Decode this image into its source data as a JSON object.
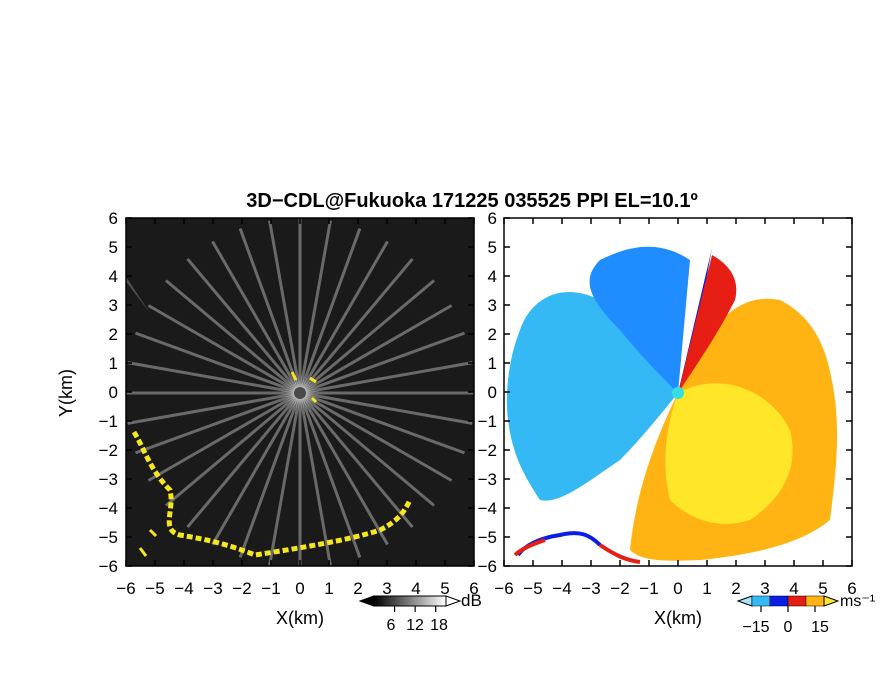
{
  "figure": {
    "title": "3D−CDL@Fukuoka 171225 035525 PPI EL=10.1º"
  },
  "colors": {
    "reflectivity_dark": "#111111",
    "reflectivity_light": "#f2f2f2",
    "strong_echo": "#f5e61e",
    "radar_site_left": "#4a4a4a",
    "radar_site_right": "#33e0e0",
    "velocity_negative": [
      "#0a1ee6",
      "#1f8cff",
      "#35b9f5",
      "#a7e4fb"
    ],
    "velocity_positive": [
      "#e61e14",
      "#ff7814",
      "#ffb414",
      "#ffe628"
    ]
  },
  "chart_data": [
    {
      "type": "heatmap",
      "name": "reflectivity",
      "title": "",
      "xlabel": "X(km)",
      "ylabel": "Y(km)",
      "xlim": [
        -6,
        6
      ],
      "ylim": [
        -6,
        6
      ],
      "x_ticks": [
        "−6",
        "−5",
        "−4",
        "−3",
        "−2",
        "−1",
        "0",
        "1",
        "2",
        "3",
        "4",
        "5",
        "6"
      ],
      "y_ticks": [
        "6",
        "5",
        "4",
        "3",
        "2",
        "1",
        "0",
        "−1",
        "−2",
        "−3",
        "−4",
        "−5",
        "−6"
      ],
      "colorbar": {
        "unit": "dB",
        "ticks": [
          "6",
          "12",
          "18"
        ],
        "tick_values": [
          6,
          12,
          18
        ],
        "range": [
          0,
          21
        ]
      }
    },
    {
      "type": "heatmap",
      "name": "doppler_velocity",
      "title": "",
      "xlabel": "X(km)",
      "ylabel": "",
      "xlim": [
        -6,
        6
      ],
      "ylim": [
        -6,
        6
      ],
      "x_ticks": [
        "−6",
        "−5",
        "−4",
        "−3",
        "−2",
        "−1",
        "0",
        "1",
        "2",
        "3",
        "4",
        "5",
        "6"
      ],
      "colorbar": {
        "unit": "ms⁻¹",
        "ticks": [
          "−15",
          "0",
          "15"
        ],
        "tick_values": [
          -15,
          0,
          15
        ],
        "range": [
          -20,
          20
        ]
      }
    }
  ]
}
